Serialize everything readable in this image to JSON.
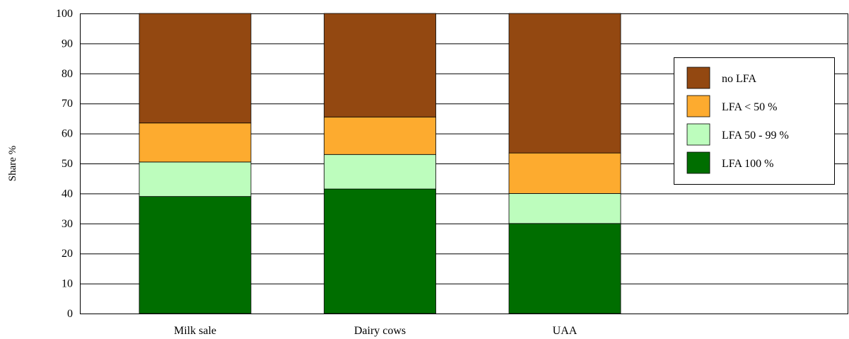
{
  "chart_data": {
    "type": "bar",
    "stacked": true,
    "categories": [
      "Milk sale",
      "Dairy cows",
      "UAA"
    ],
    "series": [
      {
        "name": "LFA 100 %",
        "color": "#006e00",
        "values": [
          39,
          41.5,
          30
        ]
      },
      {
        "name": "LFA 50 - 99 %",
        "color": "#bdfdbd",
        "values": [
          11.5,
          11.5,
          10
        ]
      },
      {
        "name": "LFA < 50 %",
        "color": "#fdab2f",
        "values": [
          13,
          12.5,
          13.5
        ]
      },
      {
        "name": "no LFA",
        "color": "#934811",
        "values": [
          36.5,
          34.5,
          46.5
        ]
      }
    ],
    "legend_order": [
      "no LFA",
      "LFA < 50 %",
      "LFA 50 - 99 %",
      "LFA 100 %"
    ],
    "ylabel": "Share %",
    "xlabel": "",
    "ylim": [
      0,
      100
    ],
    "yticks": [
      0,
      10,
      20,
      30,
      40,
      50,
      60,
      70,
      80,
      90,
      100
    ],
    "grid": true,
    "legend_position": "right"
  }
}
